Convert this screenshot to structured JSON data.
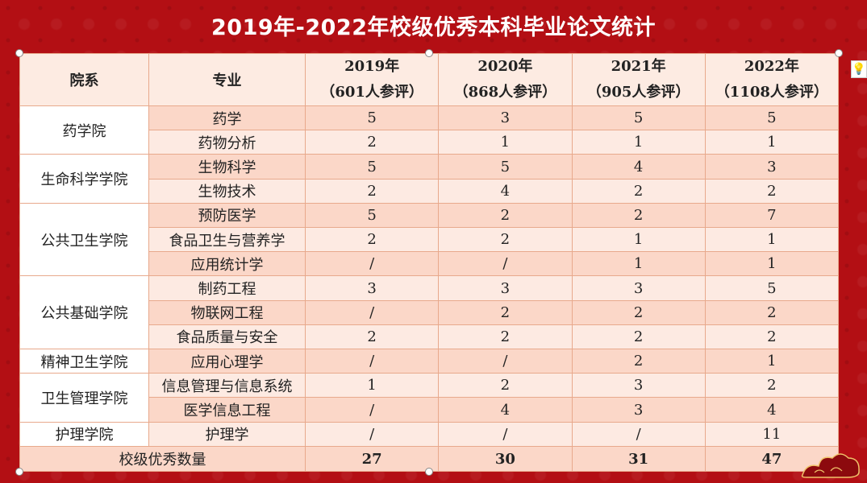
{
  "title": "2019年-2022年校级优秀本科毕业论文统计",
  "headers": {
    "dept": "院系",
    "major": "专业",
    "years": [
      {
        "year": "2019年",
        "count": "（601人参评）"
      },
      {
        "year": "2020年",
        "count": "（868人参评）"
      },
      {
        "year": "2021年",
        "count": "（905人参评）"
      },
      {
        "year": "2022年",
        "count": "（1108人参评）"
      }
    ]
  },
  "departments": [
    "药学院",
    "生命科学学院",
    "公共卫生学院",
    "公共基础学院",
    "精神卫生学院",
    "卫生管理学院",
    "护理学院"
  ],
  "rows": [
    {
      "major": "药学",
      "values": [
        "5",
        "3",
        "5",
        "5"
      ]
    },
    {
      "major": "药物分析",
      "values": [
        "2",
        "1",
        "1",
        "1"
      ]
    },
    {
      "major": "生物科学",
      "values": [
        "5",
        "5",
        "4",
        "3"
      ]
    },
    {
      "major": "生物技术",
      "values": [
        "2",
        "4",
        "2",
        "2"
      ]
    },
    {
      "major": "预防医学",
      "values": [
        "5",
        "2",
        "2",
        "7"
      ]
    },
    {
      "major": "食品卫生与营养学",
      "values": [
        "2",
        "2",
        "1",
        "1"
      ]
    },
    {
      "major": "应用统计学",
      "values": [
        "/",
        "/",
        "1",
        "1"
      ]
    },
    {
      "major": "制药工程",
      "values": [
        "3",
        "3",
        "3",
        "5"
      ]
    },
    {
      "major": "物联网工程",
      "values": [
        "/",
        "2",
        "2",
        "2"
      ]
    },
    {
      "major": "食品质量与安全",
      "values": [
        "2",
        "2",
        "2",
        "2"
      ]
    },
    {
      "major": "应用心理学",
      "values": [
        "/",
        "/",
        "2",
        "1"
      ]
    },
    {
      "major": "信息管理与信息系统",
      "values": [
        "1",
        "2",
        "3",
        "2"
      ]
    },
    {
      "major": "医学信息工程",
      "values": [
        "/",
        "4",
        "3",
        "4"
      ]
    },
    {
      "major": "护理学",
      "values": [
        "/",
        "/",
        "/",
        "11"
      ]
    }
  ],
  "footer": {
    "label": "校级优秀数量",
    "totals": [
      "27",
      "30",
      "31",
      "47"
    ]
  },
  "colors": {
    "background": "#b30f14",
    "header": "#fdebe2",
    "row_alt": "#fbd7c8",
    "border": "#e8a98c"
  },
  "icons": {
    "assistant": "lightbulb-icon",
    "ornament": "cloud-ornament"
  }
}
